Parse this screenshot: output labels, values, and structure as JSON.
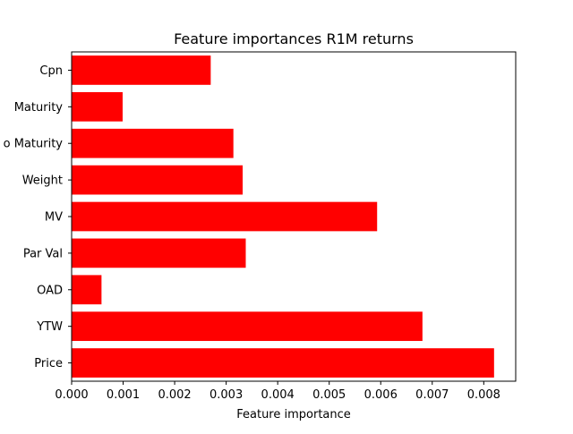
{
  "chart_data": {
    "type": "bar",
    "orientation": "horizontal",
    "title": "Feature importances R1M returns",
    "xlabel": "Feature importance",
    "ylabel": "",
    "categories": [
      "Price",
      "YTW",
      "OAD",
      "Par Val",
      "MV",
      "Weight",
      "Yrs to Maturity",
      "Maturity",
      "Cpn"
    ],
    "category_tick_labels": [
      "Price",
      "YTW",
      "OAD",
      "Par Val",
      "MV",
      "Weight",
      "o Maturity",
      "Maturity",
      "Cpn"
    ],
    "values": [
      0.0082,
      0.00681,
      0.00058,
      0.00338,
      0.00593,
      0.00332,
      0.00314,
      0.00099,
      0.0027
    ],
    "xlim": [
      0.0,
      0.00862
    ],
    "xticks": [
      0.0,
      0.001,
      0.002,
      0.003,
      0.004,
      0.005,
      0.006,
      0.007,
      0.008
    ],
    "xtick_labels": [
      "0.000",
      "0.001",
      "0.002",
      "0.003",
      "0.004",
      "0.005",
      "0.006",
      "0.007",
      "0.008"
    ],
    "grid": false,
    "legend": "none",
    "bar_color": "#ff0000"
  }
}
